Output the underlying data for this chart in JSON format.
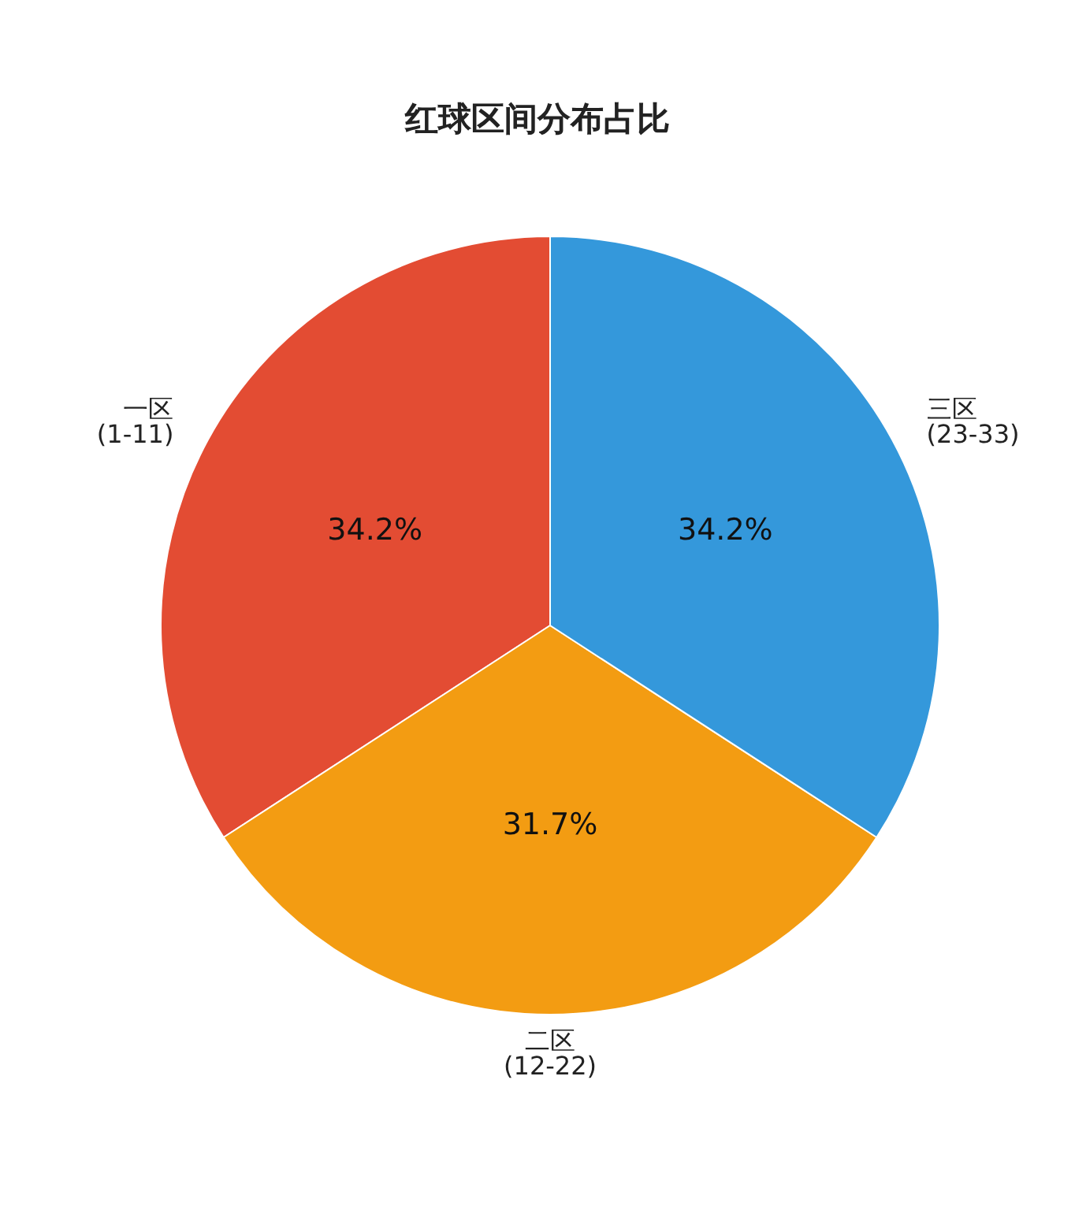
{
  "chart_data": {
    "type": "pie",
    "title": "红球区间分布占比",
    "categories": [
      "一区\n(1-11)",
      "二区\n(12-22)",
      "三区\n(23-33)"
    ],
    "values": [
      34.2,
      31.7,
      34.2
    ],
    "colors": [
      "#e34c33",
      "#f39c12",
      "#3498db"
    ],
    "value_labels": [
      "34.2%",
      "31.7%",
      "34.2%"
    ],
    "legend": false
  }
}
